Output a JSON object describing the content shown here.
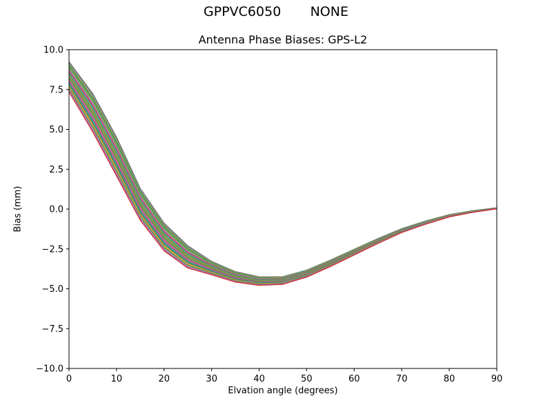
{
  "figure": {
    "suptitle": "GPPVC6050       NONE"
  },
  "chart_data": {
    "type": "line",
    "suptitle": "GPPVC6050       NONE",
    "title": "Antenna Phase Biases: GPS-L2",
    "xlabel": "Elvation angle (degrees)",
    "ylabel": "Bias (mm)",
    "xlim": [
      0,
      90
    ],
    "ylim": [
      -10,
      10
    ],
    "grid": false,
    "legend": "none",
    "xticks": [
      {
        "value": 0,
        "label": "0"
      },
      {
        "value": 10,
        "label": "10"
      },
      {
        "value": 20,
        "label": "20"
      },
      {
        "value": 30,
        "label": "30"
      },
      {
        "value": 40,
        "label": "40"
      },
      {
        "value": 50,
        "label": "50"
      },
      {
        "value": 60,
        "label": "60"
      },
      {
        "value": 70,
        "label": "70"
      },
      {
        "value": 80,
        "label": "80"
      },
      {
        "value": 90,
        "label": "90"
      }
    ],
    "yticks": [
      {
        "value": 10,
        "label": "10.0"
      },
      {
        "value": 7.5,
        "label": "7.5"
      },
      {
        "value": 5,
        "label": "5.0"
      },
      {
        "value": 2.5,
        "label": "2.5"
      },
      {
        "value": 0,
        "label": "0.0"
      },
      {
        "value": -2.5,
        "label": "−2.5"
      },
      {
        "value": -5,
        "label": "−5.0"
      },
      {
        "value": -7.5,
        "label": "−7.5"
      },
      {
        "value": -10,
        "label": "−10.0"
      }
    ],
    "x": [
      0,
      5,
      10,
      15,
      20,
      25,
      30,
      35,
      40,
      45,
      50,
      55,
      60,
      65,
      70,
      75,
      80,
      85,
      90
    ],
    "base": [
      8.3,
      6.05,
      3.3,
      0.3,
      -1.75,
      -3.0,
      -3.7,
      -4.25,
      -4.52,
      -4.48,
      -4.05,
      -3.4,
      -2.7,
      -2.0,
      -1.35,
      -0.85,
      -0.42,
      -0.15,
      0.05
    ],
    "spread": [
      0.95,
      1.2,
      1.22,
      1.0,
      0.87,
      0.7,
      0.42,
      0.33,
      0.27,
      0.24,
      0.22,
      0.2,
      0.18,
      0.15,
      0.12,
      0.1,
      0.07,
      0.05,
      0.03
    ],
    "palette": [
      "#1f77b4",
      "#ff7f0e",
      "#2ca02c",
      "#d62728",
      "#9467bd",
      "#8c564b",
      "#e377c2",
      "#7f7f7f",
      "#bcbd22",
      "#17becf"
    ],
    "lines": [
      {
        "color": 7,
        "offset": 1.0
      },
      {
        "color": 5,
        "offset": 0.935
      },
      {
        "color": 9,
        "offset": 0.871
      },
      {
        "color": 1,
        "offset": 0.806
      },
      {
        "color": 2,
        "offset": 0.742
      },
      {
        "color": 0,
        "offset": 0.677
      },
      {
        "color": 8,
        "offset": 0.613
      },
      {
        "color": 2,
        "offset": 0.548
      },
      {
        "color": 6,
        "offset": 0.484
      },
      {
        "color": 4,
        "offset": 0.419
      },
      {
        "color": 3,
        "offset": 0.355
      },
      {
        "color": 7,
        "offset": 0.29
      },
      {
        "color": 9,
        "offset": 0.226
      },
      {
        "color": 2,
        "offset": 0.161
      },
      {
        "color": 1,
        "offset": 0.097
      },
      {
        "color": 0,
        "offset": 0.032
      },
      {
        "color": 8,
        "offset": -0.032
      },
      {
        "color": 2,
        "offset": -0.097
      },
      {
        "color": 5,
        "offset": -0.161
      },
      {
        "color": 6,
        "offset": -0.226
      },
      {
        "color": 4,
        "offset": -0.29
      },
      {
        "color": 3,
        "offset": -0.355
      },
      {
        "color": 9,
        "offset": -0.419
      },
      {
        "color": 2,
        "offset": -0.484
      },
      {
        "color": 0,
        "offset": -0.548
      },
      {
        "color": 1,
        "offset": -0.613
      },
      {
        "color": 8,
        "offset": -0.677
      },
      {
        "color": 7,
        "offset": -0.742
      },
      {
        "color": 2,
        "offset": -0.806
      },
      {
        "color": 6,
        "offset": -0.871
      },
      {
        "color": 4,
        "offset": -0.935
      },
      {
        "color": 3,
        "offset": -1.0
      }
    ]
  }
}
